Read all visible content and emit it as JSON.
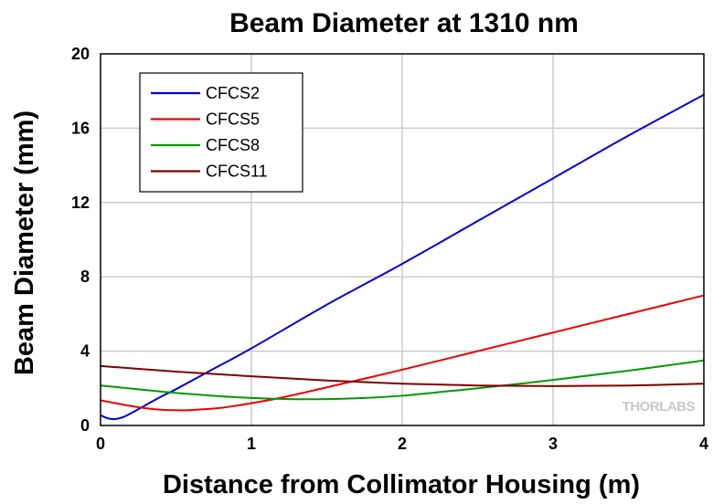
{
  "chart_data": {
    "type": "line",
    "title": "Beam Diameter at 1310 nm",
    "xlabel": "Distance from Collimator Housing (m)",
    "ylabel": "Beam Diameter (mm)",
    "xlim": [
      0,
      4
    ],
    "ylim": [
      0,
      20
    ],
    "xticks": [
      0,
      1,
      2,
      3,
      4
    ],
    "yticks": [
      0,
      4,
      8,
      12,
      16,
      20
    ],
    "grid": true,
    "legend_position": "top-left",
    "watermark": "THORLABS",
    "series": [
      {
        "name": "CFCS2",
        "color": "#0000dd",
        "x": [
          0,
          0.05,
          0.1,
          0.15,
          0.2,
          0.3,
          0.4,
          0.5,
          0.75,
          1.0,
          1.5,
          2.0,
          2.5,
          3.0,
          3.5,
          4.0
        ],
        "y": [
          0.55,
          0.38,
          0.35,
          0.45,
          0.65,
          1.1,
          1.55,
          1.95,
          3.05,
          4.15,
          6.5,
          8.7,
          11.0,
          13.3,
          15.6,
          17.8
        ]
      },
      {
        "name": "CFCS5",
        "color": "#ee0000",
        "x": [
          0,
          0.1,
          0.2,
          0.3,
          0.4,
          0.5,
          0.6,
          0.8,
          1.0,
          1.2,
          1.5,
          2.0,
          2.5,
          3.0,
          3.5,
          4.0
        ],
        "y": [
          1.35,
          1.2,
          1.05,
          0.93,
          0.85,
          0.82,
          0.83,
          0.95,
          1.2,
          1.5,
          2.05,
          3.0,
          4.0,
          5.0,
          6.0,
          7.0
        ]
      },
      {
        "name": "CFCS8",
        "color": "#009900",
        "x": [
          0,
          0.25,
          0.5,
          0.75,
          1.0,
          1.25,
          1.5,
          1.75,
          2.0,
          2.25,
          2.5,
          3.0,
          3.5,
          4.0
        ],
        "y": [
          2.15,
          1.95,
          1.75,
          1.6,
          1.48,
          1.42,
          1.42,
          1.48,
          1.6,
          1.8,
          2.0,
          2.45,
          2.95,
          3.5
        ]
      },
      {
        "name": "CFCS11",
        "color": "#800000",
        "x": [
          0,
          0.5,
          1.0,
          1.5,
          2.0,
          2.5,
          3.0,
          3.5,
          4.0
        ],
        "y": [
          3.2,
          2.9,
          2.65,
          2.42,
          2.25,
          2.15,
          2.12,
          2.15,
          2.25
        ]
      }
    ]
  }
}
